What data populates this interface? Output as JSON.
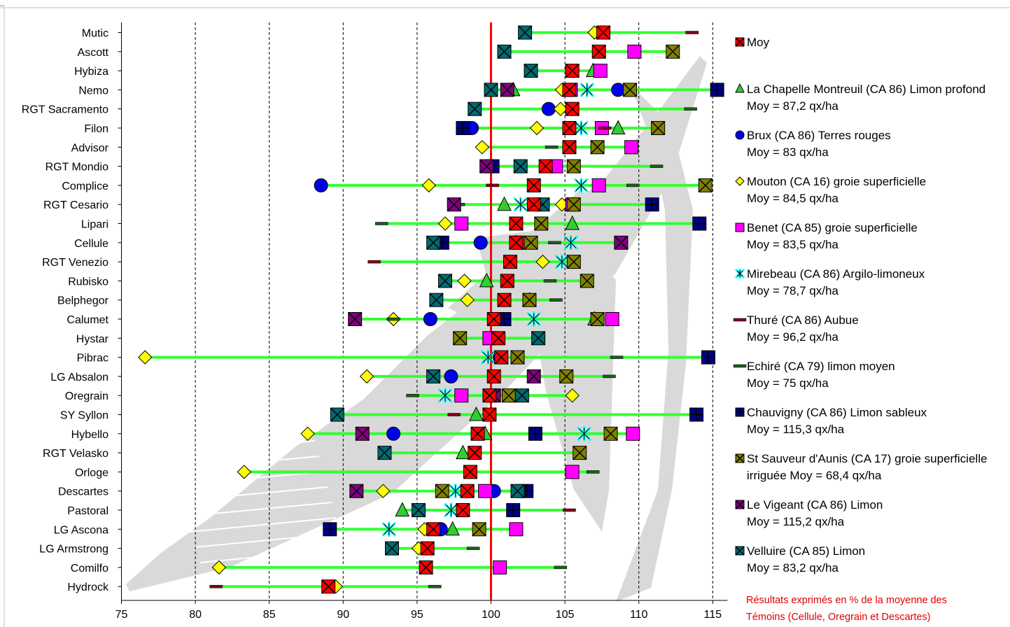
{
  "chart_data": {
    "type": "scatter",
    "xlim": [
      75,
      116
    ],
    "x_ticks": [
      75,
      80,
      85,
      90,
      95,
      100,
      105,
      110,
      115
    ],
    "reference_line": 100,
    "grid": "vertical dashed",
    "legend_position": "right",
    "categories": [
      "Mutic",
      "Ascott",
      "Hybiza",
      "Nemo",
      "RGT Sacramento",
      "Filon",
      "Advisor",
      "RGT Mondio",
      "Complice",
      "RGT Cesario",
      "Lipari",
      "Cellule",
      "RGT Venezio",
      "Rubisko",
      "Belphegor",
      "Calumet",
      "Hystar",
      "Pibrac",
      "LG Absalon",
      "Oregrain",
      "SY Syllon",
      "Hybello",
      "RGT Velasko",
      "Orloge",
      "Descartes",
      "Pastoral",
      "LG Ascona",
      "LG Armstrong",
      "Comilfo",
      "Hydrock"
    ],
    "series": [
      {
        "name": "Moy",
        "marker": "xsquare",
        "color": "#ff0000",
        "values": [
          107.6,
          107.3,
          105.5,
          105.3,
          105.5,
          105.3,
          105.3,
          103.7,
          102.9,
          102.9,
          101.7,
          101.7,
          101.3,
          101.1,
          100.9,
          100.2,
          100.5,
          100.7,
          100.2,
          99.9,
          99.9,
          99.1,
          98.9,
          98.6,
          98.4,
          98.1,
          96.1,
          95.7,
          95.6,
          89.0
        ]
      },
      {
        "name": "La Chapelle Montreuil  (CA 86) Limon profond",
        "label2": "Moy = 87,2 qx/ha",
        "marker": "triangle",
        "color": "#33cc33",
        "values": [
          null,
          null,
          106.9,
          101.5,
          null,
          108.6,
          null,
          null,
          null,
          100.9,
          105.5,
          101.7,
          null,
          99.7,
          102.6,
          107.0,
          null,
          null,
          null,
          null,
          99.0,
          99.6,
          98.1,
          null,
          null,
          94.0,
          97.4,
          null,
          null,
          null
        ]
      },
      {
        "name": "Brux (CA 86) Terres rouges",
        "label2": "Moy = 83 qx/ha",
        "marker": "circle",
        "color": "#0000e6",
        "values": [
          null,
          null,
          null,
          108.6,
          103.9,
          98.7,
          null,
          null,
          88.5,
          null,
          null,
          99.3,
          null,
          null,
          null,
          95.9,
          null,
          100.6,
          97.3,
          null,
          null,
          93.4,
          null,
          null,
          100.2,
          null,
          96.6,
          null,
          null,
          null
        ]
      },
      {
        "name": "Mouton (CA 16) groie superficielle",
        "label2": "Moy = 84,5 qx/ha",
        "marker": "diamond",
        "color": "#ffff00",
        "values": [
          107.0,
          null,
          null,
          104.8,
          104.7,
          103.1,
          99.4,
          null,
          95.8,
          104.8,
          96.9,
          101.8,
          103.5,
          98.2,
          98.4,
          93.4,
          null,
          76.6,
          91.6,
          105.5,
          null,
          87.6,
          null,
          83.3,
          92.7,
          null,
          95.5,
          95.1,
          81.6,
          89.5
        ]
      },
      {
        "name": "Benet (CA 85) groie superficielle",
        "label2": "Moy = 83,5 qx/ha",
        "marker": "square",
        "color": "#ff00ff",
        "values": [
          null,
          109.7,
          107.4,
          105.4,
          null,
          107.5,
          109.5,
          104.4,
          107.3,
          105.5,
          98.0,
          101.9,
          null,
          null,
          null,
          108.2,
          99.9,
          null,
          null,
          98.0,
          null,
          109.6,
          null,
          105.5,
          99.6,
          null,
          101.7,
          null,
          100.6,
          null
        ]
      },
      {
        "name": "Mirebeau (CA 86) Argilo-limoneux",
        "label2": "Moy = 78,7 qx/ha",
        "marker": "asterisk",
        "color": "#00ffff",
        "values": [
          null,
          null,
          null,
          106.5,
          null,
          106.1,
          null,
          null,
          106.1,
          102.0,
          null,
          105.4,
          104.8,
          null,
          null,
          102.9,
          null,
          99.8,
          null,
          96.9,
          null,
          106.3,
          null,
          null,
          97.6,
          97.3,
          93.1,
          null,
          null,
          null
        ]
      },
      {
        "name": "Thuré (CA 86)  Aubue",
        "label2": "Moy = 96,2 qx/ha",
        "marker": "dash",
        "color": "#80001a",
        "values": [
          113.6,
          null,
          null,
          null,
          null,
          107.7,
          null,
          null,
          100.1,
          null,
          null,
          null,
          92.1,
          null,
          null,
          null,
          null,
          null,
          null,
          null,
          97.5,
          null,
          null,
          null,
          null,
          105.3,
          null,
          null,
          null,
          81.4
        ]
      },
      {
        "name": "Echiré (CA 79) limon moyen",
        "label2": "Moy = 75 qx/ha",
        "marker": "dash",
        "color": "#1f5c1f",
        "values": [
          null,
          null,
          null,
          null,
          113.5,
          null,
          104.1,
          111.2,
          109.6,
          97.8,
          92.6,
          104.3,
          null,
          104.0,
          104.4,
          93.4,
          null,
          108.5,
          108.0,
          94.7,
          null,
          null,
          null,
          106.9,
          null,
          null,
          null,
          98.8,
          104.7,
          96.2
        ]
      },
      {
        "name": "Chauvigny   (CA 86) Limon sableux",
        "label2": "Moy = 115,3 qx/ha",
        "marker": "plussquare",
        "color": "#000080",
        "values": [
          null,
          null,
          null,
          115.3,
          null,
          98.1,
          null,
          100.1,
          null,
          110.9,
          114.1,
          96.7,
          null,
          null,
          null,
          100.9,
          null,
          114.7,
          null,
          null,
          113.9,
          103.0,
          null,
          null,
          102.4,
          101.5,
          89.1,
          null,
          null,
          null
        ]
      },
      {
        "name": " St Sauveur d'Aunis (CA 17) groie superficielle",
        "label2": "irriguée   Moy =  68,4 qx/ha",
        "marker": "xsquare",
        "color": "#808000",
        "values": [
          null,
          112.3,
          null,
          109.4,
          null,
          111.3,
          107.2,
          105.6,
          114.5,
          105.6,
          103.4,
          102.7,
          105.6,
          106.5,
          102.6,
          107.2,
          97.9,
          101.8,
          105.1,
          101.2,
          null,
          108.1,
          106.0,
          null,
          96.7,
          null,
          99.2,
          null,
          null,
          null
        ]
      },
      {
        "name": "Le Vigeant (CA 86)  Limon",
        "label2": "Moy =  115,2 qx/ha",
        "marker": "xsquare",
        "color": "#800080",
        "values": [
          null,
          null,
          null,
          101.1,
          null,
          null,
          null,
          99.7,
          null,
          97.5,
          null,
          108.8,
          null,
          null,
          null,
          90.8,
          null,
          null,
          102.9,
          100.2,
          null,
          91.3,
          null,
          null,
          90.9,
          null,
          null,
          null,
          null,
          null
        ]
      },
      {
        "name": "Velluire (CA 85) Limon",
        "label2": "Moy = 83,2 qx/ha",
        "marker": "xsquare",
        "color": "#006a70",
        "values": [
          102.3,
          100.9,
          102.7,
          100.0,
          98.9,
          null,
          null,
          102.0,
          null,
          103.5,
          null,
          96.1,
          null,
          96.9,
          96.3,
          null,
          103.2,
          null,
          96.1,
          102.1,
          89.6,
          null,
          92.8,
          null,
          101.8,
          95.1,
          null,
          93.3,
          null,
          null
        ]
      }
    ],
    "annotation": "Résultats exprimés en % de la moyenne des Témoins (Cellule, Oregrain et Descartes)"
  },
  "ui": {
    "top_mark": "..",
    "footnote_line1": "Résultats exprimés en % de la moyenne des",
    "footnote_line2": "Témoins (Cellule, Oregrain et Descartes)"
  }
}
